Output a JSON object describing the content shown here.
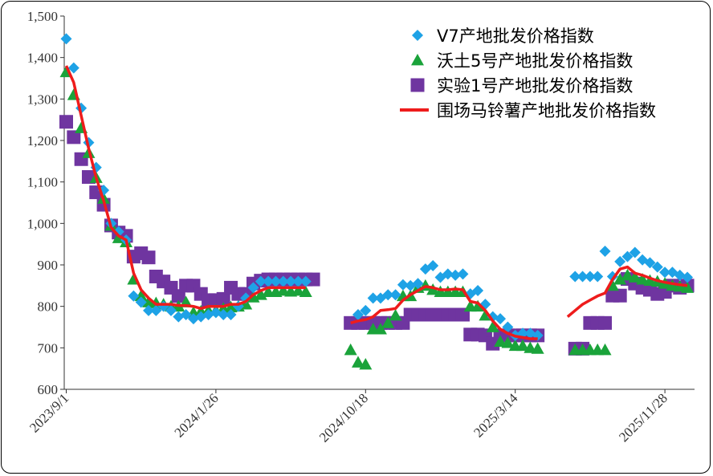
{
  "chart_data": {
    "type": "scatter",
    "ylim": [
      600,
      1500
    ],
    "yticks": [
      "600",
      "700",
      "800",
      "900",
      "1,000",
      "1,100",
      "1,200",
      "1,300",
      "1,400",
      "1,500"
    ],
    "x_ticks": [
      "2023/9/1",
      "2024/1/26",
      "2024/10/18",
      "2025/3/14",
      "2025/11/28"
    ],
    "legend_position": "top-right",
    "grid": false,
    "series": [
      {
        "name": "V7产地批发价格指数",
        "marker": "diamond",
        "color": "#1ea2e6",
        "points": [
          [
            0,
            1445
          ],
          [
            1,
            1375
          ],
          [
            2,
            1278
          ],
          [
            3,
            1195
          ],
          [
            4,
            1135
          ],
          [
            5,
            1080
          ],
          [
            6,
            1000
          ],
          [
            7,
            980
          ],
          [
            8,
            960
          ],
          [
            9,
            825
          ],
          [
            10,
            810
          ],
          [
            11,
            790
          ],
          [
            12,
            790
          ],
          [
            13,
            800
          ],
          [
            14,
            790
          ],
          [
            15,
            775
          ],
          [
            16,
            780
          ],
          [
            17,
            770
          ],
          [
            18,
            775
          ],
          [
            19,
            780
          ],
          [
            20,
            785
          ],
          [
            21,
            780
          ],
          [
            22,
            780
          ],
          [
            23,
            800
          ],
          [
            24,
            820
          ],
          [
            25,
            845
          ],
          [
            26,
            860
          ],
          [
            27,
            860
          ],
          [
            28,
            860
          ],
          [
            29,
            860
          ],
          [
            30,
            860
          ],
          [
            31,
            860
          ],
          [
            32,
            860
          ],
          [
            39,
            780
          ],
          [
            40,
            790
          ],
          [
            41,
            820
          ],
          [
            42,
            820
          ],
          [
            43,
            828
          ],
          [
            44,
            828
          ],
          [
            45,
            852
          ],
          [
            46,
            850
          ],
          [
            47,
            855
          ],
          [
            48,
            890
          ],
          [
            49,
            898
          ],
          [
            50,
            870
          ],
          [
            51,
            878
          ],
          [
            52,
            875
          ],
          [
            53,
            878
          ],
          [
            54,
            830
          ],
          [
            55,
            838
          ],
          [
            56,
            805
          ],
          [
            57,
            775
          ],
          [
            58,
            770
          ],
          [
            59,
            750
          ],
          [
            60,
            730
          ],
          [
            61,
            735
          ],
          [
            62,
            735
          ],
          [
            63,
            730
          ],
          [
            68,
            872
          ],
          [
            69,
            872
          ],
          [
            70,
            872
          ],
          [
            71,
            872
          ],
          [
            72,
            933
          ],
          [
            73,
            872
          ],
          [
            74,
            908
          ],
          [
            75,
            920
          ],
          [
            76,
            930
          ],
          [
            77,
            912
          ],
          [
            78,
            905
          ],
          [
            79,
            895
          ],
          [
            80,
            882
          ],
          [
            81,
            882
          ],
          [
            82,
            875
          ],
          [
            83,
            870
          ]
        ]
      },
      {
        "name": "沃土5号产地批发价格指数",
        "marker": "triangle",
        "color": "#1aa33a",
        "points": [
          [
            0,
            1365
          ],
          [
            1,
            1310
          ],
          [
            2,
            1230
          ],
          [
            3,
            1170
          ],
          [
            4,
            1110
          ],
          [
            5,
            1060
          ],
          [
            6,
            995
          ],
          [
            7,
            965
          ],
          [
            8,
            955
          ],
          [
            9,
            865
          ],
          [
            10,
            825
          ],
          [
            11,
            810
          ],
          [
            12,
            808
          ],
          [
            13,
            805
          ],
          [
            14,
            800
          ],
          [
            15,
            800
          ],
          [
            16,
            810
          ],
          [
            17,
            785
          ],
          [
            18,
            788
          ],
          [
            19,
            790
          ],
          [
            20,
            790
          ],
          [
            21,
            795
          ],
          [
            22,
            798
          ],
          [
            23,
            800
          ],
          [
            24,
            805
          ],
          [
            25,
            822
          ],
          [
            26,
            828
          ],
          [
            27,
            835
          ],
          [
            28,
            835
          ],
          [
            29,
            838
          ],
          [
            30,
            836
          ],
          [
            31,
            838
          ],
          [
            32,
            835
          ],
          [
            38,
            695
          ],
          [
            39,
            665
          ],
          [
            40,
            660
          ],
          [
            41,
            745
          ],
          [
            42,
            745
          ],
          [
            43,
            760
          ],
          [
            44,
            778
          ],
          [
            45,
            825
          ],
          [
            46,
            825
          ],
          [
            47,
            845
          ],
          [
            48,
            850
          ],
          [
            49,
            840
          ],
          [
            50,
            835
          ],
          [
            51,
            835
          ],
          [
            52,
            835
          ],
          [
            53,
            835
          ],
          [
            54,
            800
          ],
          [
            55,
            800
          ],
          [
            56,
            778
          ],
          [
            57,
            750
          ],
          [
            58,
            715
          ],
          [
            59,
            712
          ],
          [
            60,
            705
          ],
          [
            61,
            705
          ],
          [
            62,
            700
          ],
          [
            63,
            698
          ],
          [
            68,
            695
          ],
          [
            69,
            695
          ],
          [
            70,
            695
          ],
          [
            71,
            695
          ],
          [
            72,
            695
          ],
          [
            73,
            850
          ],
          [
            74,
            865
          ],
          [
            75,
            875
          ],
          [
            76,
            870
          ],
          [
            77,
            865
          ],
          [
            78,
            862
          ],
          [
            79,
            860
          ],
          [
            80,
            855
          ],
          [
            81,
            850
          ],
          [
            82,
            848
          ],
          [
            83,
            845
          ]
        ]
      },
      {
        "name": "实验1号产地批发价格指数",
        "marker": "square",
        "color": "#6f35a0",
        "points": [
          [
            0,
            1245
          ],
          [
            1,
            1208
          ],
          [
            2,
            1155
          ],
          [
            3,
            1112
          ],
          [
            4,
            1075
          ],
          [
            5,
            1045
          ],
          [
            6,
            995
          ],
          [
            7,
            978
          ],
          [
            8,
            970
          ],
          [
            9,
            920
          ],
          [
            10,
            928
          ],
          [
            11,
            918
          ],
          [
            12,
            872
          ],
          [
            13,
            860
          ],
          [
            14,
            845
          ],
          [
            15,
            825
          ],
          [
            16,
            850
          ],
          [
            17,
            850
          ],
          [
            18,
            830
          ],
          [
            19,
            815
          ],
          [
            20,
            815
          ],
          [
            21,
            818
          ],
          [
            22,
            845
          ],
          [
            23,
            830
          ],
          [
            24,
            830
          ],
          [
            25,
            855
          ],
          [
            26,
            862
          ],
          [
            27,
            865
          ],
          [
            28,
            865
          ],
          [
            29,
            865
          ],
          [
            30,
            865
          ],
          [
            31,
            865
          ],
          [
            32,
            865
          ],
          [
            33,
            865
          ],
          [
            38,
            760
          ],
          [
            39,
            760
          ],
          [
            40,
            760
          ],
          [
            41,
            760
          ],
          [
            42,
            760
          ],
          [
            43,
            760
          ],
          [
            44,
            760
          ],
          [
            45,
            760
          ],
          [
            46,
            780
          ],
          [
            47,
            780
          ],
          [
            48,
            780
          ],
          [
            49,
            780
          ],
          [
            50,
            780
          ],
          [
            51,
            780
          ],
          [
            52,
            780
          ],
          [
            53,
            780
          ],
          [
            54,
            732
          ],
          [
            55,
            732
          ],
          [
            56,
            730
          ],
          [
            57,
            710
          ],
          [
            58,
            730
          ],
          [
            59,
            730
          ],
          [
            60,
            730
          ],
          [
            61,
            730
          ],
          [
            62,
            730
          ],
          [
            63,
            730
          ],
          [
            68,
            698
          ],
          [
            69,
            698
          ],
          [
            70,
            760
          ],
          [
            71,
            760
          ],
          [
            72,
            760
          ],
          [
            73,
            826
          ],
          [
            74,
            826
          ],
          [
            75,
            866
          ],
          [
            76,
            855
          ],
          [
            77,
            845
          ],
          [
            78,
            840
          ],
          [
            79,
            830
          ],
          [
            80,
            835
          ],
          [
            81,
            850
          ],
          [
            82,
            845
          ],
          [
            83,
            850
          ]
        ]
      },
      {
        "name": "围场马铃薯产地批发价格指数",
        "marker": "line",
        "color": "#ee1c1c",
        "points": [
          [
            0,
            1380
          ],
          [
            1,
            1340
          ],
          [
            2,
            1260
          ],
          [
            3,
            1180
          ],
          [
            4,
            1110
          ],
          [
            5,
            1055
          ],
          [
            6,
            990
          ],
          [
            7,
            970
          ],
          [
            8,
            960
          ],
          [
            9,
            880
          ],
          [
            10,
            840
          ],
          [
            11,
            820
          ],
          [
            12,
            805
          ],
          [
            13,
            805
          ],
          [
            14,
            805
          ],
          [
            15,
            802
          ],
          [
            16,
            802
          ],
          [
            17,
            800
          ],
          [
            18,
            795
          ],
          [
            19,
            800
          ],
          [
            20,
            800
          ],
          [
            21,
            800
          ],
          [
            22,
            805
          ],
          [
            23,
            805
          ],
          [
            24,
            812
          ],
          [
            25,
            828
          ],
          [
            26,
            838
          ],
          [
            27,
            845
          ],
          [
            28,
            845
          ],
          [
            29,
            845
          ],
          [
            30,
            845
          ],
          [
            31,
            845
          ],
          [
            32,
            845
          ],
          [
            38,
            760
          ],
          [
            39,
            765
          ],
          [
            40,
            768
          ],
          [
            41,
            775
          ],
          [
            42,
            790
          ],
          [
            43,
            792
          ],
          [
            44,
            795
          ],
          [
            45,
            815
          ],
          [
            46,
            828
          ],
          [
            47,
            838
          ],
          [
            48,
            848
          ],
          [
            49,
            845
          ],
          [
            50,
            840
          ],
          [
            51,
            840
          ],
          [
            52,
            842
          ],
          [
            53,
            840
          ],
          [
            54,
            812
          ],
          [
            55,
            808
          ],
          [
            56,
            790
          ],
          [
            57,
            765
          ],
          [
            58,
            745
          ],
          [
            59,
            735
          ],
          [
            60,
            728
          ],
          [
            61,
            725
          ],
          [
            62,
            722
          ],
          [
            63,
            722
          ],
          [
            67,
            775
          ],
          [
            68,
            790
          ],
          [
            69,
            805
          ],
          [
            70,
            815
          ],
          [
            71,
            825
          ],
          [
            72,
            832
          ],
          [
            73,
            865
          ],
          [
            74,
            890
          ],
          [
            75,
            895
          ],
          [
            76,
            880
          ],
          [
            77,
            875
          ],
          [
            78,
            868
          ],
          [
            79,
            862
          ],
          [
            80,
            858
          ],
          [
            81,
            855
          ],
          [
            82,
            852
          ],
          [
            83,
            850
          ]
        ]
      }
    ]
  }
}
